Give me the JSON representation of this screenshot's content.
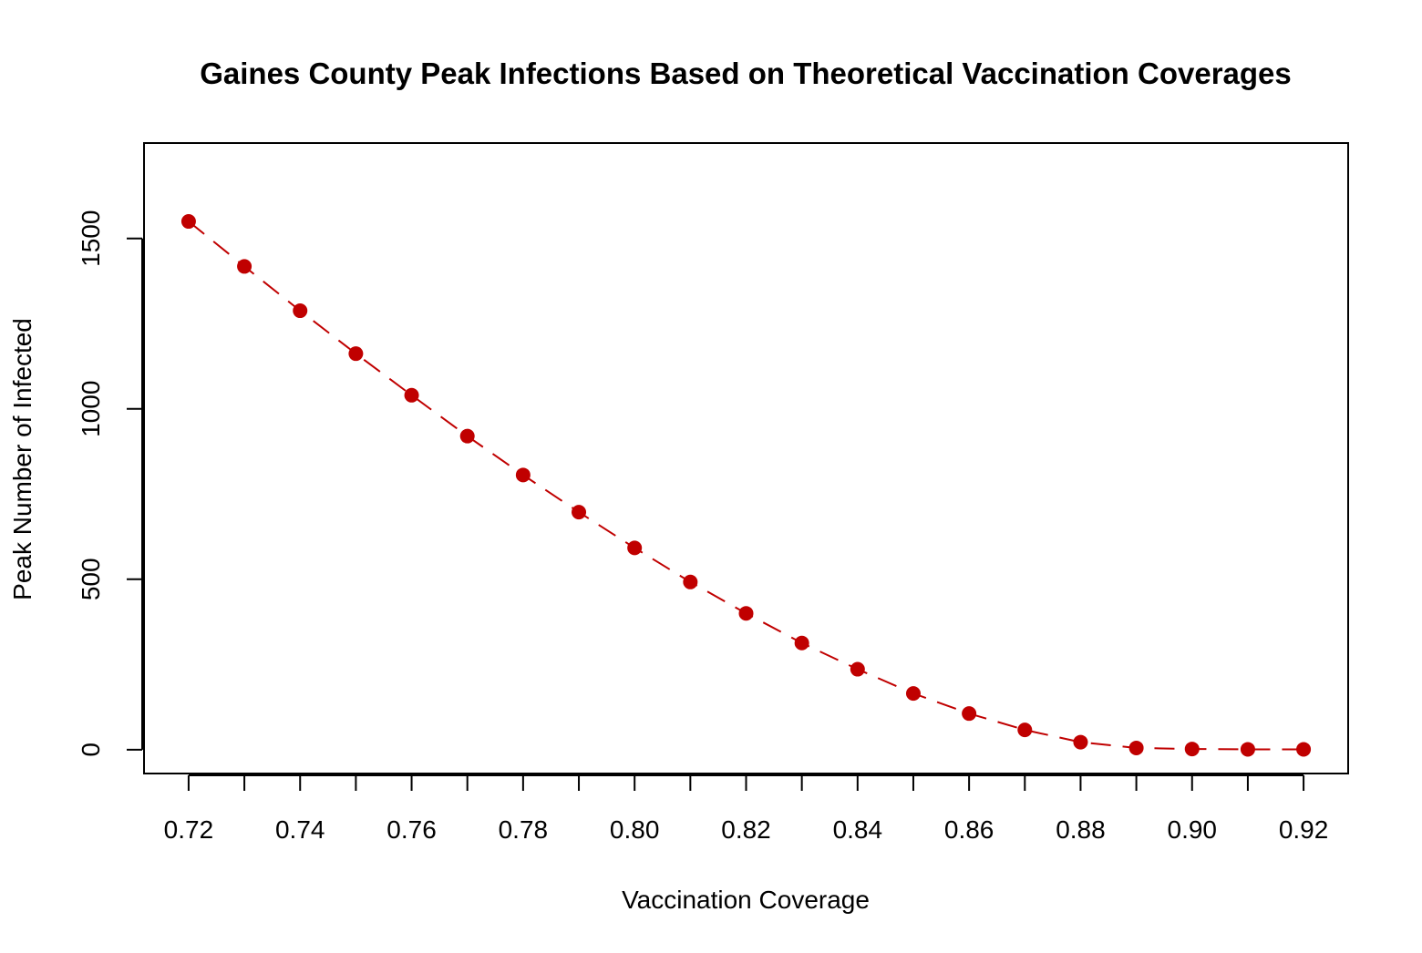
{
  "chart_data": {
    "type": "line",
    "title": "Gaines County Peak Infections Based on Theoretical Vaccination Coverages",
    "xlabel": "Vaccination Coverage",
    "ylabel": "Peak Number of Infected",
    "x": [
      0.72,
      0.73,
      0.74,
      0.75,
      0.76,
      0.77,
      0.78,
      0.79,
      0.8,
      0.81,
      0.82,
      0.83,
      0.84,
      0.85,
      0.86,
      0.87,
      0.88,
      0.89,
      0.9,
      0.91,
      0.92
    ],
    "series": [
      {
        "values": [
          1550,
          1418,
          1288,
          1162,
          1040,
          920,
          806,
          697,
          592,
          492,
          400,
          313,
          236,
          165,
          106,
          58,
          22,
          5,
          2,
          1,
          1
        ]
      }
    ],
    "xlim": [
      0.712,
      0.928
    ],
    "ylim": [
      -70,
      1780
    ],
    "x_ticks": [
      0.72,
      0.73,
      0.74,
      0.75,
      0.76,
      0.77,
      0.78,
      0.79,
      0.8,
      0.81,
      0.82,
      0.83,
      0.84,
      0.85,
      0.86,
      0.87,
      0.88,
      0.89,
      0.9,
      0.91,
      0.92
    ],
    "x_tick_labels": [
      {
        "value": 0.72,
        "label": "0.72"
      },
      {
        "value": 0.74,
        "label": "0.74"
      },
      {
        "value": 0.76,
        "label": "0.76"
      },
      {
        "value": 0.78,
        "label": "0.78"
      },
      {
        "value": 0.8,
        "label": "0.80"
      },
      {
        "value": 0.82,
        "label": "0.82"
      },
      {
        "value": 0.84,
        "label": "0.84"
      },
      {
        "value": 0.86,
        "label": "0.86"
      },
      {
        "value": 0.88,
        "label": "0.88"
      },
      {
        "value": 0.9,
        "label": "0.90"
      },
      {
        "value": 0.92,
        "label": "0.92"
      }
    ],
    "y_ticks": [
      {
        "value": 0,
        "label": "0"
      },
      {
        "value": 500,
        "label": "500"
      },
      {
        "value": 1000,
        "label": "1000"
      },
      {
        "value": 1500,
        "label": "1500"
      }
    ],
    "line_style": "dashed",
    "marker": "filled-circle",
    "color": "#c00000",
    "grid": false,
    "legend": false
  }
}
